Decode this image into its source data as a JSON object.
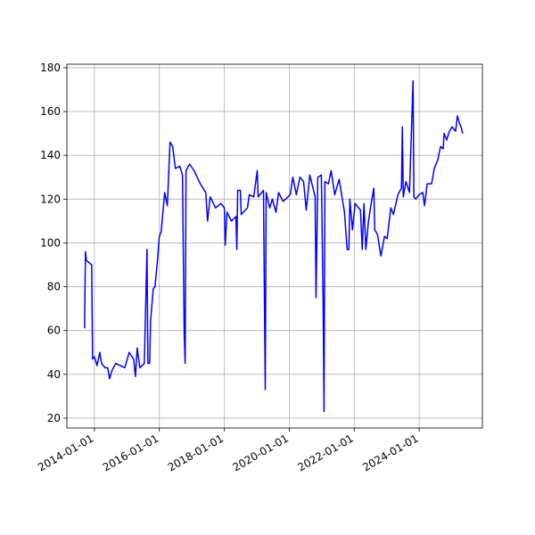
{
  "chart_data": {
    "type": "line",
    "color": "#0000ff",
    "grid": true,
    "x": [
      "2013-09-12",
      "2013-09-22",
      "2013-10-02",
      "2013-12-01",
      "2013-12-11",
      "2014-01-01",
      "2014-01-31",
      "2014-03-02",
      "2014-03-22",
      "2014-05-01",
      "2014-05-31",
      "2014-06-20",
      "2014-07-20",
      "2014-08-29",
      "2014-12-08",
      "2015-01-27",
      "2015-03-18",
      "2015-04-07",
      "2015-04-27",
      "2015-05-27",
      "2015-07-16",
      "2015-08-15",
      "2015-08-25",
      "2015-09-14",
      "2015-09-24",
      "2015-10-24",
      "2015-11-13",
      "2015-12-13",
      "2016-01-01",
      "2016-01-21",
      "2016-03-01",
      "2016-03-31",
      "2016-04-30",
      "2016-05-30",
      "2016-06-29",
      "2016-08-18",
      "2016-09-17",
      "2016-10-07",
      "2016-10-17",
      "2016-10-27",
      "2016-12-06",
      "2017-01-26",
      "2017-04-05",
      "2017-06-06",
      "2017-06-26",
      "2017-07-26",
      "2017-09-24",
      "2017-11-23",
      "2018-01-01",
      "2018-01-11",
      "2018-01-31",
      "2018-03-21",
      "2018-05-11",
      "2018-05-21",
      "2018-05-31",
      "2018-06-30",
      "2018-07-10",
      "2018-09-18",
      "2018-10-08",
      "2018-11-27",
      "2019-01-06",
      "2019-01-16",
      "2019-03-17",
      "2019-04-06",
      "2019-04-16",
      "2019-05-26",
      "2019-06-25",
      "2019-08-04",
      "2019-09-03",
      "2019-10-23",
      "2019-11-22",
      "2020-01-11",
      "2020-02-10",
      "2020-03-21",
      "2020-04-30",
      "2020-06-10",
      "2020-07-10",
      "2020-08-19",
      "2020-10-18",
      "2020-10-28",
      "2020-11-17",
      "2020-12-27",
      "2021-01-16",
      "2021-01-26",
      "2021-02-05",
      "2021-03-17",
      "2021-04-16",
      "2021-05-26",
      "2021-07-15",
      "2021-09-13",
      "2021-10-13",
      "2021-11-02",
      "2021-11-12",
      "2021-12-12",
      "2022-01-11",
      "2022-03-12",
      "2022-04-01",
      "2022-04-21",
      "2022-05-11",
      "2022-06-10",
      "2022-07-10",
      "2022-08-09",
      "2022-08-19",
      "2022-09-18",
      "2022-10-28",
      "2022-12-07",
      "2023-01-06",
      "2023-02-16",
      "2023-03-18",
      "2023-05-07",
      "2023-06-16",
      "2023-06-26",
      "2023-07-06",
      "2023-08-05",
      "2023-09-14",
      "2023-10-24",
      "2023-11-03",
      "2023-11-23",
      "2024-01-01",
      "2024-02-10",
      "2024-03-01",
      "2024-03-31",
      "2024-05-20",
      "2024-06-19",
      "2024-07-29",
      "2024-08-28",
      "2024-09-27",
      "2024-10-07",
      "2024-11-06",
      "2024-12-06",
      "2025-01-05",
      "2025-02-14",
      "2025-03-06",
      "2025-03-26",
      "2025-04-15",
      "2025-05-05"
    ],
    "values": [
      61,
      96,
      92,
      90,
      47,
      48,
      44,
      50,
      45,
      43,
      43,
      38,
      42,
      45,
      43,
      50,
      47,
      39,
      52,
      43,
      45,
      97,
      45,
      45,
      64,
      79,
      80,
      93,
      103,
      105,
      123,
      117,
      146,
      144,
      134,
      135,
      131,
      58,
      45,
      133,
      136,
      133,
      127,
      123,
      110,
      121,
      116,
      118,
      116,
      99,
      114,
      110,
      112,
      97,
      124,
      124,
      113,
      116,
      122,
      121,
      133,
      121,
      124,
      33,
      123,
      116,
      120,
      114,
      123,
      119,
      120,
      122,
      130,
      122,
      130,
      128,
      115,
      131,
      121,
      75,
      130,
      131,
      73,
      23,
      128,
      127,
      133,
      122,
      129,
      114,
      97,
      97,
      120,
      106,
      118,
      115,
      97,
      118,
      97,
      110,
      118,
      125,
      106,
      104,
      94,
      103,
      102,
      116,
      113,
      122,
      125,
      153,
      121,
      128,
      123,
      174,
      121,
      120,
      122,
      123,
      117,
      127,
      127,
      134,
      138,
      144,
      143,
      150,
      147,
      151,
      153,
      151,
      158,
      155,
      153,
      150
    ],
    "xlim": [
      "2013-02-25",
      "2025-12-12"
    ],
    "xticks": [
      "2014-01-01",
      "2016-01-01",
      "2018-01-01",
      "2020-01-01",
      "2022-01-01",
      "2024-01-01"
    ],
    "ylim": [
      15.5,
      181.6
    ],
    "yticks": [
      20,
      40,
      60,
      80,
      100,
      120,
      140,
      160,
      180
    ]
  }
}
